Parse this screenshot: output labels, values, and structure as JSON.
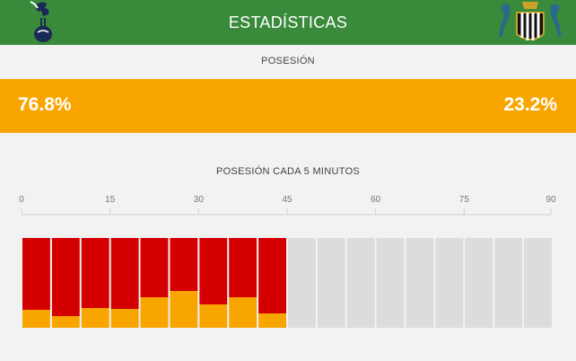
{
  "header": {
    "title": "ESTADÍSTICAS",
    "home_crest_icon": "cockerel-crest-icon",
    "away_crest_icon": "magpie-crest-icon"
  },
  "possession": {
    "label": "POSESIÓN",
    "home": "76.8%",
    "away": "23.2%",
    "bar_color": "#f8a500"
  },
  "intervals": {
    "label": "POSESIÓN CADA 5 MINUTOS",
    "ticks": [
      "0",
      "15",
      "30",
      "45",
      "60",
      "75",
      "90"
    ],
    "colors": {
      "home": "#d40000",
      "away": "#f8a500",
      "empty": "#dcdcdc"
    }
  },
  "chart_data": {
    "type": "bar",
    "stacked": true,
    "x": [
      "0-5",
      "5-10",
      "10-15",
      "15-20",
      "20-25",
      "25-30",
      "30-35",
      "35-40",
      "40-45",
      "45-50",
      "50-55",
      "55-60",
      "60-65",
      "65-70",
      "70-75",
      "75-80",
      "80-85",
      "85-90"
    ],
    "series": [
      {
        "values": [
          80,
          87,
          78,
          79,
          66,
          59,
          74,
          66,
          84,
          null,
          null,
          null,
          null,
          null,
          null,
          null,
          null,
          null
        ]
      },
      {
        "values": [
          20,
          13,
          22,
          21,
          34,
          41,
          26,
          34,
          16,
          null,
          null,
          null,
          null,
          null,
          null,
          null,
          null,
          null
        ]
      }
    ],
    "ylim": [
      0,
      100
    ]
  }
}
